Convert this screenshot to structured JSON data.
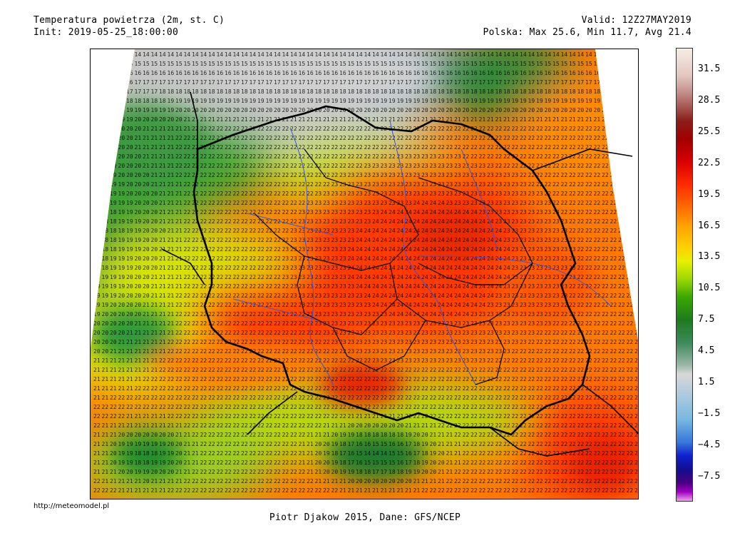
{
  "header": {
    "title": "Temperatura powietrza (2m, st. C)",
    "init": "Init: 2019-05-25_18:00:00",
    "valid": "Valid: 12Z27MAY2019",
    "stats": "Polska: Max 25.6, Min 11.7, Avg 21.4"
  },
  "colorbar": {
    "labels": [
      "31.5",
      "28.5",
      "25.5",
      "22.5",
      "19.5",
      "16.5",
      "13.5",
      "10.5",
      "7.5",
      "4.5",
      "1.5",
      "−1.5",
      "−4.5",
      "−7.5"
    ]
  },
  "footer": {
    "url": "http://meteomodel.pl",
    "credit": "Piotr Djakow 2015, Dane: GFS/NCEP"
  },
  "colors": {
    "gray": "#c8c8c8",
    "dark_green": "#2e8b3a",
    "green": "#62b42c",
    "yellow": "#e6e800",
    "orange": "#ff8a00",
    "red_orange": "#ff4a00",
    "red": "#e82000",
    "border": "#000000",
    "river": "#3c50e6"
  }
}
